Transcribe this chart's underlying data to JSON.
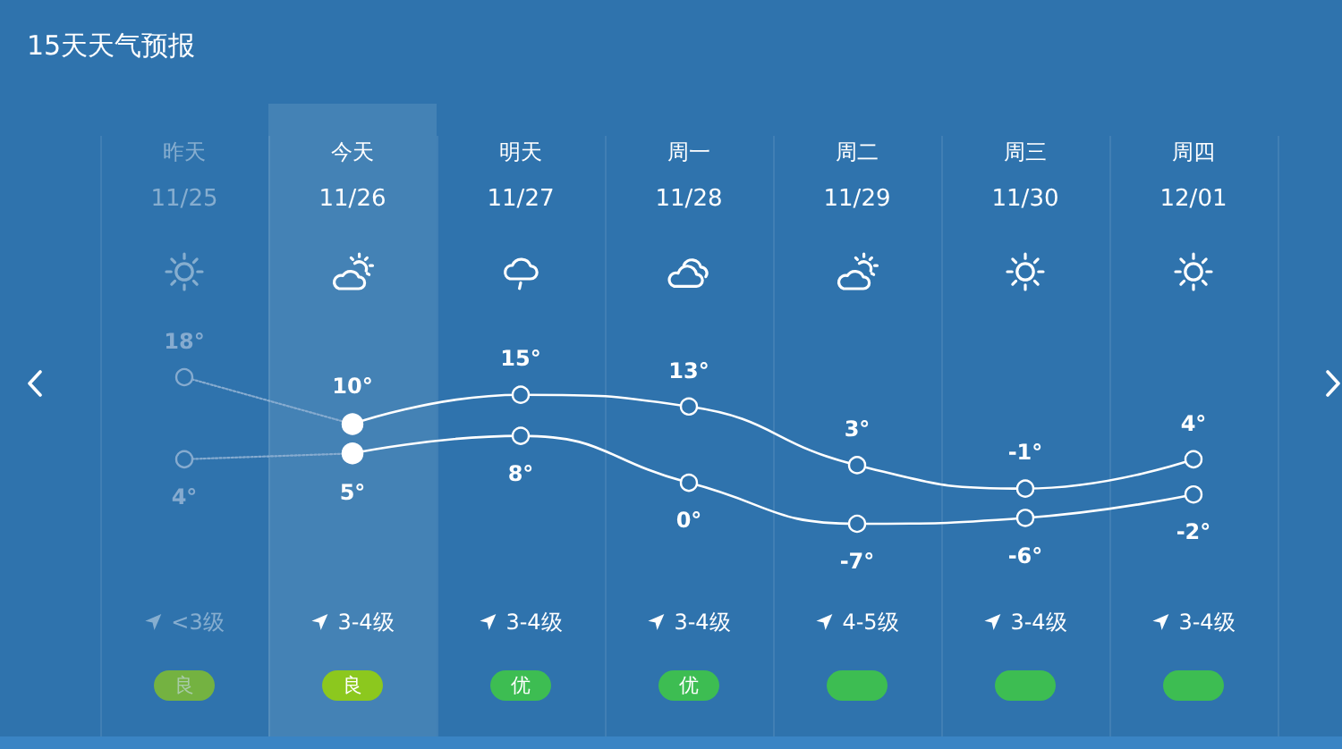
{
  "chart_data": {
    "type": "line",
    "title": "15天天气预报",
    "categories": [
      "11/25",
      "11/26",
      "11/27",
      "11/28",
      "11/29",
      "11/30",
      "12/01"
    ],
    "series": [
      {
        "color": "#86abcf",
        "line_style": "dotted",
        "values": [
          18,
          10,
          null,
          null,
          null,
          null,
          null
        ],
        "value_labels": [
          "18°",
          null,
          null,
          null,
          null,
          null,
          null
        ]
      },
      {
        "color": "#86abcf",
        "line_style": "dotted",
        "values": [
          4,
          5,
          null,
          null,
          null,
          null,
          null
        ],
        "value_labels": [
          "4°",
          null,
          null,
          null,
          null,
          null,
          null
        ]
      },
      {
        "color": "#ffffff",
        "values": [
          null,
          10,
          15,
          13,
          3,
          -1,
          4
        ],
        "value_labels": [
          null,
          "10°",
          "15°",
          "13°",
          "3°",
          "-1°",
          "4°"
        ]
      },
      {
        "color": "#ffffff",
        "values": [
          null,
          5,
          8,
          0,
          -7,
          -6,
          -2
        ],
        "value_labels": [
          null,
          "5°",
          "8°",
          "0°",
          "-7°",
          "-6°",
          "-2°"
        ]
      }
    ],
    "annotations": [
      "昨天",
      "今天",
      "明天",
      "周一",
      "周二",
      "周三",
      "周四",
      "<3级",
      "3-4级",
      "3-4级",
      "3-4级",
      "4-5级",
      "3-4级",
      "3-4级",
      "良",
      "良",
      "优",
      "优"
    ],
    "bands": [
      {
        "axis": "x",
        "from": "11/26",
        "to": "11/26",
        "color": "#4482b5"
      }
    ],
    "marker": "circle",
    "line_style": "solid",
    "grid": "x",
    "tick_labels": "x"
  }
}
